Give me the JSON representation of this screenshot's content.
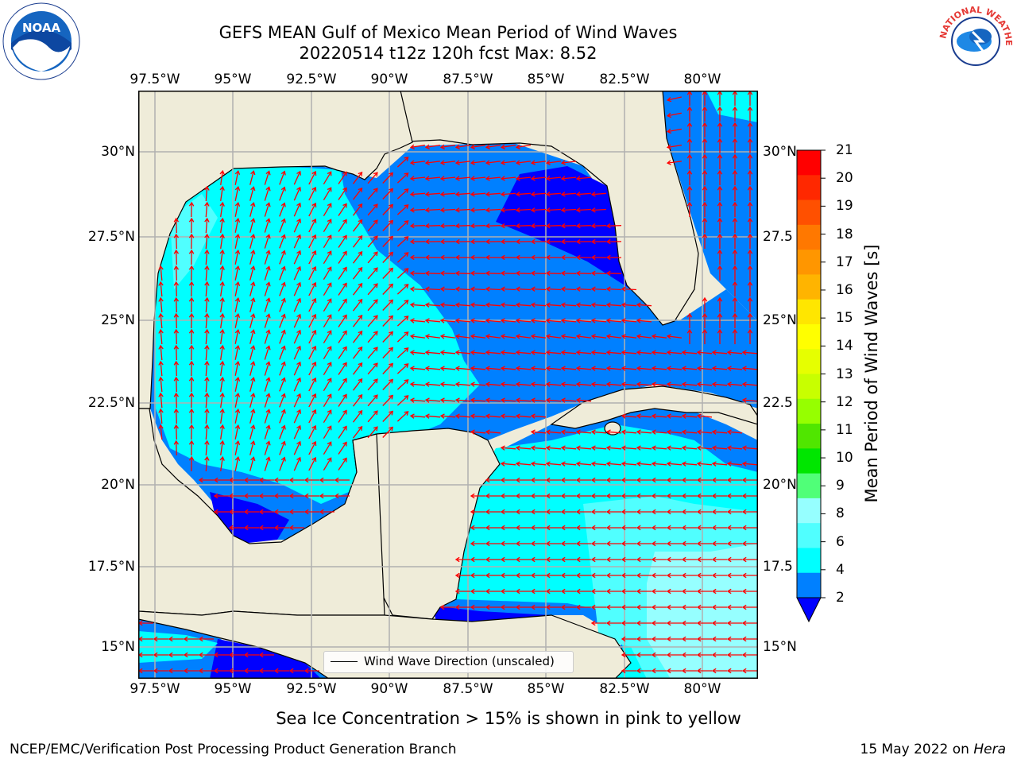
{
  "title": {
    "line1": "GEFS MEAN Gulf of Mexico Mean Period of Wind Waves",
    "line2": "20220514 t12z 120h fcst   Max: 8.52"
  },
  "axes": {
    "lon_labels": [
      "97.5°W",
      "95°W",
      "92.5°W",
      "90°W",
      "87.5°W",
      "85°W",
      "82.5°W",
      "80°W"
    ],
    "lat_labels": [
      "30°N",
      "27.5°N",
      "25°N",
      "22.5°N",
      "20°N",
      "17.5°N",
      "15°N"
    ],
    "lat_labels_right": [
      "30°N",
      "27.5",
      "25°N",
      "22.5",
      "20°N",
      "17.5",
      "15°N"
    ]
  },
  "colorbar": {
    "label": "Mean Period of Wind Waves [s]",
    "ticks": [
      "21",
      "20",
      "19",
      "18",
      "17",
      "16",
      "15",
      "14",
      "13",
      "12",
      "11",
      "10",
      "9",
      "8",
      "6",
      "4",
      "2"
    ],
    "colors": [
      "#ff0000",
      "#ff2800",
      "#ff5000",
      "#ff7800",
      "#ff9600",
      "#ffb400",
      "#ffe600",
      "#ffff00",
      "#e6ff00",
      "#c8ff00",
      "#96ff00",
      "#50e600",
      "#00e600",
      "#50ff78",
      "#96ffff",
      "#50ffff",
      "#00ffff",
      "#0080ff"
    ],
    "under_color": "#0000ff"
  },
  "map": {
    "land_color": "#efecd9",
    "field_colors": {
      "period_under_2": "#0000ff",
      "period_2_4": "#0080ff",
      "period_4_6": "#00ffff",
      "period_6_8": "#50ffff",
      "period_8_9": "#96ffff"
    },
    "arrow_color": "#ff0000",
    "grid_color": "#b0b0b0"
  },
  "legend": {
    "label": "Wind Wave Direction (unscaled)"
  },
  "subtitle": "Sea Ice Concentration > 15% is shown in pink to yellow",
  "footer": {
    "left": "NCEP/EMC/Verification Post Processing Product Generation Branch",
    "right_date": "15 May 2022 on ",
    "right_host": "Hera"
  },
  "logos": {
    "noaa_text": "NOAA",
    "nws_text": "NATIONAL WEATHER SERVICE"
  }
}
